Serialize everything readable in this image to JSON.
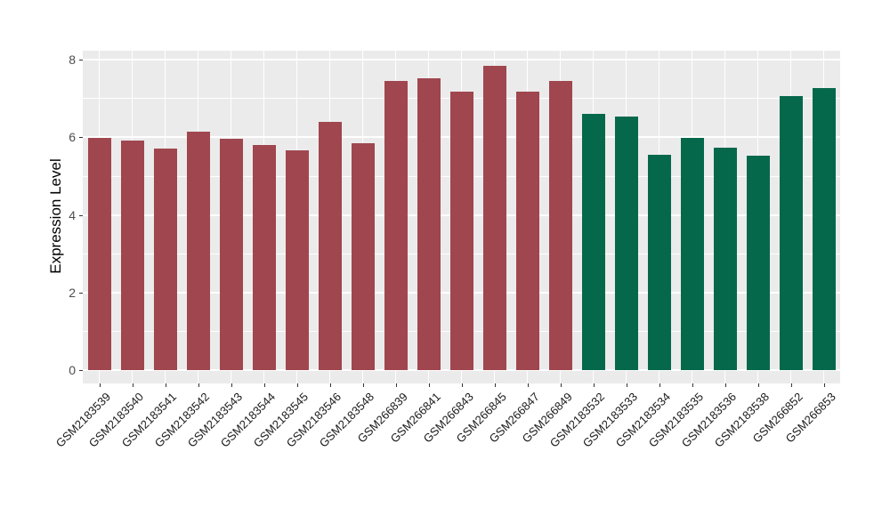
{
  "chart_data": {
    "type": "bar",
    "title": "",
    "xlabel": "",
    "ylabel": "Expression Level",
    "ylim": [
      0,
      8
    ],
    "yticks": [
      0,
      2,
      4,
      6,
      8
    ],
    "grid": "white major gridlines at even values and minor gridlines at odd values on gray panel; vertical white gridlines at each bar center",
    "legend_position": "none",
    "group_colors": {
      "red": "#A0464F",
      "green": "#06684B"
    },
    "panel_background": "#EBEBEB",
    "gridline_color": "#FFFFFF",
    "categories": [
      "GSM2183539",
      "GSM2183540",
      "GSM2183541",
      "GSM2183542",
      "GSM2183543",
      "GSM2183544",
      "GSM2183545",
      "GSM2183546",
      "GSM2183548",
      "GSM266839",
      "GSM266841",
      "GSM266843",
      "GSM266845",
      "GSM266847",
      "GSM266849",
      "GSM2183532",
      "GSM2183533",
      "GSM2183534",
      "GSM2183535",
      "GSM2183536",
      "GSM2183538",
      "GSM266852",
      "GSM266853"
    ],
    "values": [
      5.98,
      5.91,
      5.71,
      6.15,
      5.97,
      5.81,
      5.67,
      6.4,
      5.84,
      7.45,
      7.53,
      7.17,
      7.84,
      7.17,
      7.45,
      6.6,
      6.53,
      5.54,
      5.98,
      5.74,
      5.52,
      7.07,
      7.28
    ],
    "bar_group": [
      "red",
      "red",
      "red",
      "red",
      "red",
      "red",
      "red",
      "red",
      "red",
      "red",
      "red",
      "red",
      "red",
      "red",
      "red",
      "green",
      "green",
      "green",
      "green",
      "green",
      "green",
      "green",
      "green"
    ]
  }
}
